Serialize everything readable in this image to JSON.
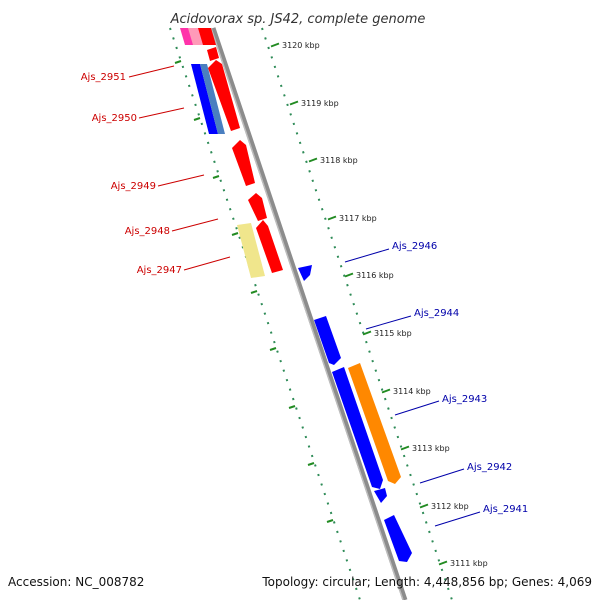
{
  "title": "Acidovorax sp. JS42, complete genome",
  "footer": {
    "accession": "Accession: NC_008782",
    "info": "Topology: circular; Length: 4,448,856 bp; Genes: 4,069"
  },
  "ruler": [
    "3120 kbp",
    "3119 kbp",
    "3118 kbp",
    "3117 kbp",
    "3116 kbp",
    "3115 kbp",
    "3114 kbp",
    "3113 kbp",
    "3112 kbp",
    "3111 kbp"
  ],
  "genes_left": [
    "Ajs_2951",
    "Ajs_2950",
    "Ajs_2949",
    "Ajs_2948",
    "Ajs_2947"
  ],
  "genes_right": [
    "Ajs_2946",
    "Ajs_2944",
    "Ajs_2943",
    "Ajs_2942",
    "Ajs_2941"
  ],
  "colors": {
    "left_label": "#cc0000",
    "right_label": "#0000aa",
    "backbone": "#888888",
    "ticks": "#228b22",
    "red": "#ff0000",
    "blue": "#0000ff",
    "steelblue": "#4a7fc0",
    "magenta": "#ff33aa",
    "pink": "#ff9999",
    "orange": "#ff8800",
    "khaki": "#f0e68c"
  }
}
